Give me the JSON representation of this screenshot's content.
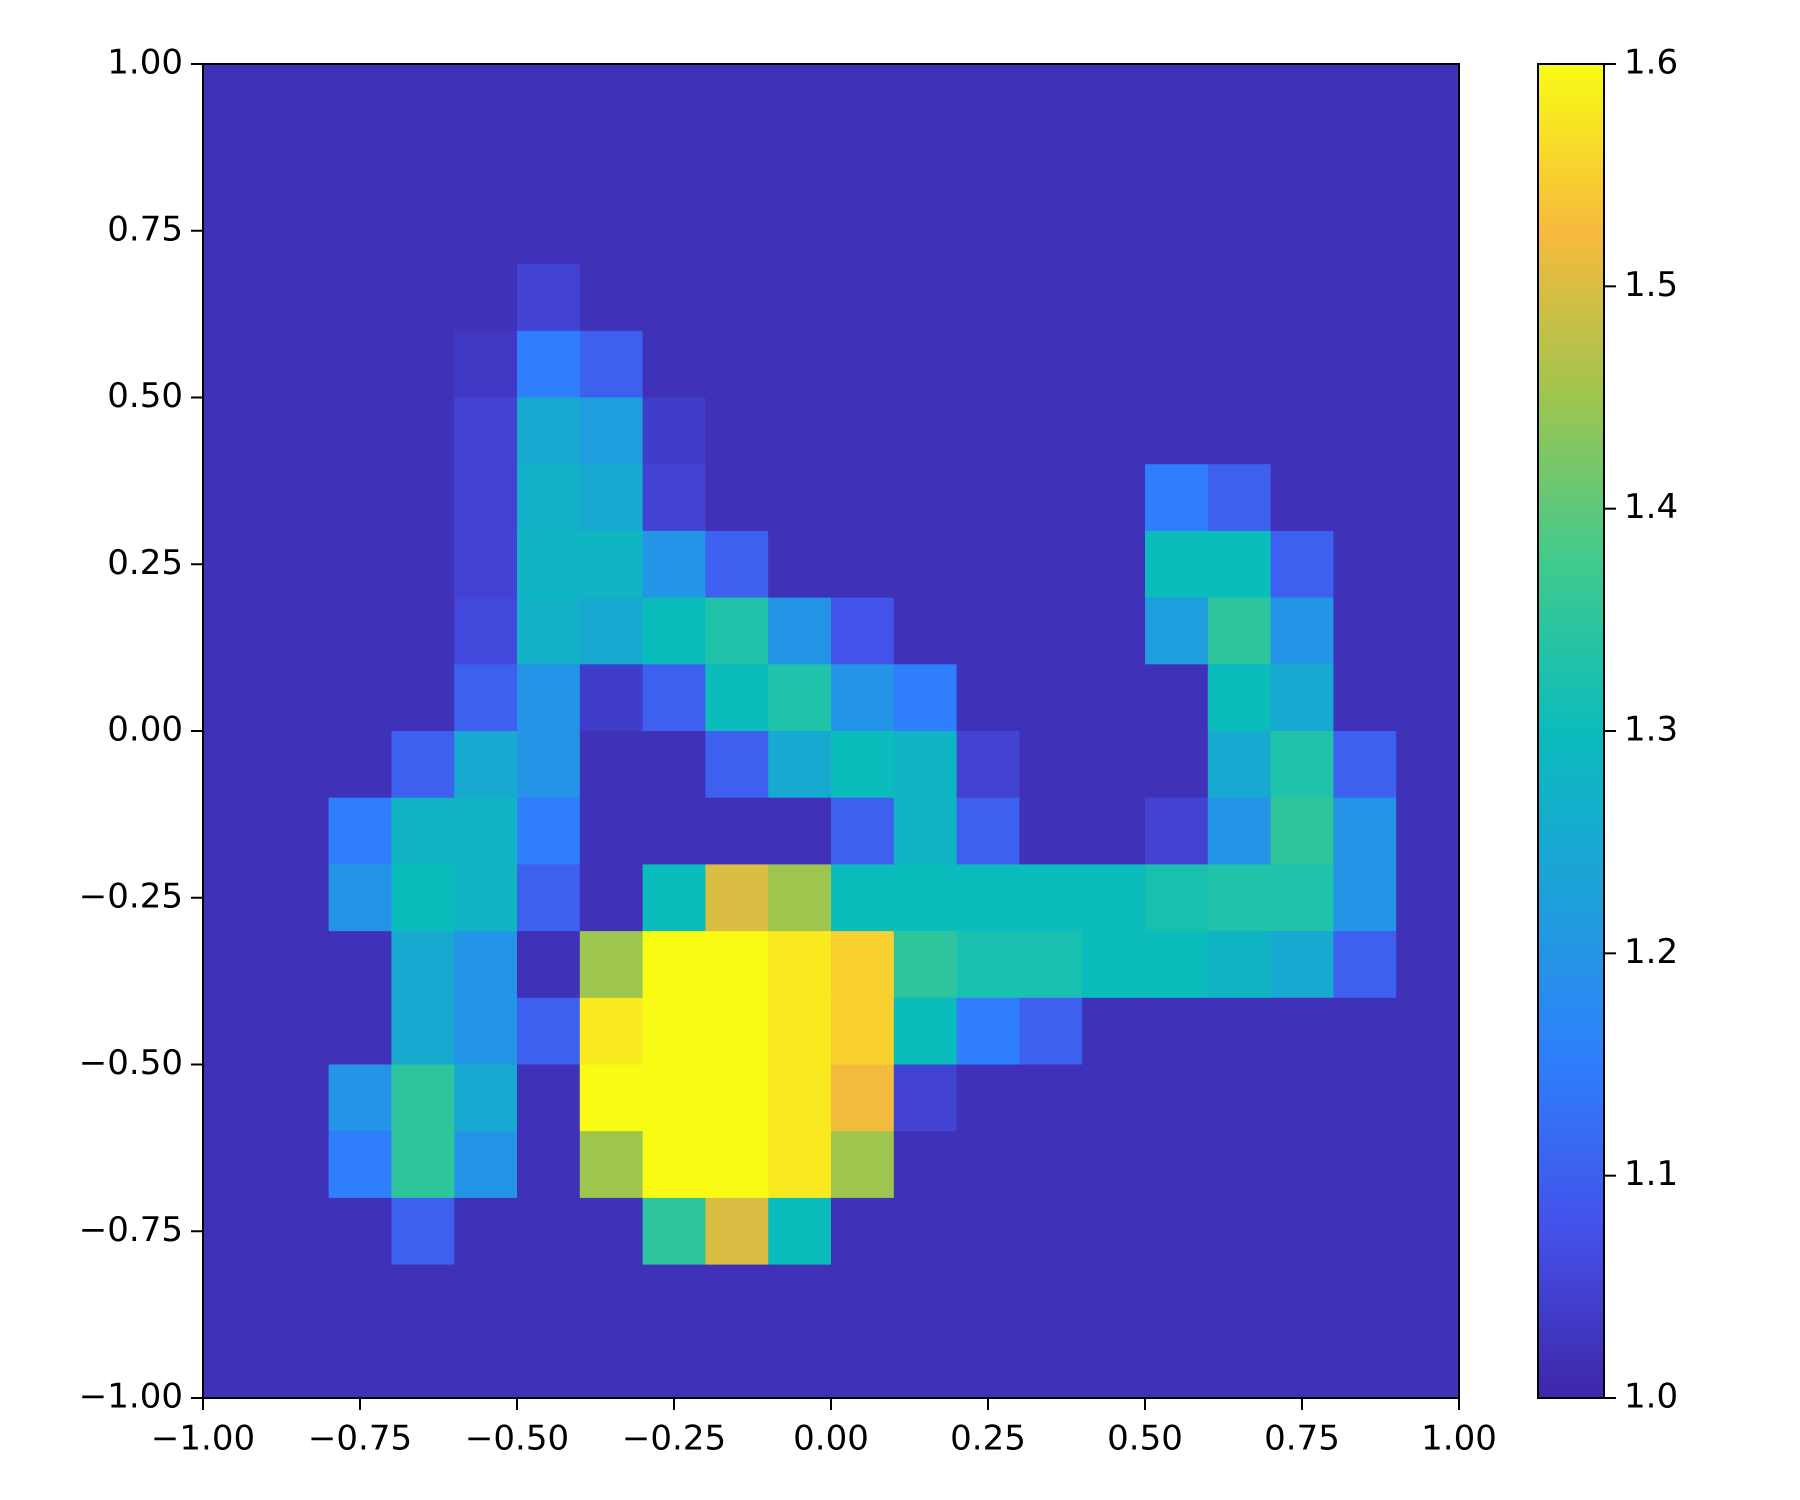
{
  "chart_data": {
    "type": "heatmap",
    "xlim": [
      -1,
      1
    ],
    "ylim": [
      -1,
      1
    ],
    "origin": "upper",
    "xticks": [
      {
        "value": -1,
        "label": "−1.00"
      },
      {
        "value": -0.75,
        "label": "−0.75"
      },
      {
        "value": -0.5,
        "label": "−0.50"
      },
      {
        "value": -0.25,
        "label": "−0.25"
      },
      {
        "value": 0,
        "label": "0.00"
      },
      {
        "value": 0.25,
        "label": "0.25"
      },
      {
        "value": 0.5,
        "label": "0.50"
      },
      {
        "value": 0.75,
        "label": "0.75"
      },
      {
        "value": 1,
        "label": "1.00"
      }
    ],
    "yticks": [
      {
        "value": -1,
        "label": "−1.00"
      },
      {
        "value": -0.75,
        "label": "−0.75"
      },
      {
        "value": -0.5,
        "label": "−0.50"
      },
      {
        "value": -0.25,
        "label": "−0.25"
      },
      {
        "value": 0,
        "label": "0.00"
      },
      {
        "value": 0.25,
        "label": "0.25"
      },
      {
        "value": 0.5,
        "label": "0.50"
      },
      {
        "value": 0.75,
        "label": "0.75"
      },
      {
        "value": 1,
        "label": "1.00"
      }
    ],
    "colorbar": {
      "lim": [
        1.0,
        1.6
      ],
      "ticks": [
        {
          "value": 1,
          "label": "1.0"
        },
        1.1,
        1.2,
        1.3,
        1.4,
        1.5,
        1.6
      ]
    },
    "colormap": [
      "#3e26a8",
      "#4451e9",
      "#2f7efb",
      "#1ea0db",
      "#0bbcbc",
      "#3fca8e",
      "#9ec54e",
      "#f8ba3d",
      "#f9fb15"
    ],
    "z": [
      [
        1.02,
        1.02,
        1.02,
        1.02,
        1.02,
        1.02,
        1.02,
        1.02,
        1.02,
        1.02,
        1.02,
        1.02,
        1.02,
        1.02,
        1.02,
        1.02,
        1.02,
        1.02,
        1.02,
        1.02
      ],
      [
        1.02,
        1.02,
        1.02,
        1.02,
        1.02,
        1.02,
        1.02,
        1.02,
        1.02,
        1.02,
        1.02,
        1.02,
        1.02,
        1.02,
        1.02,
        1.02,
        1.02,
        1.02,
        1.02,
        1.02
      ],
      [
        1.02,
        1.02,
        1.02,
        1.02,
        1.02,
        1.02,
        1.02,
        1.02,
        1.02,
        1.02,
        1.02,
        1.02,
        1.02,
        1.02,
        1.02,
        1.02,
        1.02,
        1.02,
        1.02,
        1.02
      ],
      [
        1.02,
        1.02,
        1.02,
        1.02,
        1.02,
        1.05,
        1.02,
        1.02,
        1.02,
        1.02,
        1.02,
        1.02,
        1.02,
        1.02,
        1.02,
        1.02,
        1.02,
        1.02,
        1.02,
        1.02
      ],
      [
        1.02,
        1.02,
        1.02,
        1.02,
        1.03,
        1.15,
        1.1,
        1.02,
        1.02,
        1.02,
        1.02,
        1.02,
        1.02,
        1.02,
        1.02,
        1.02,
        1.02,
        1.02,
        1.02,
        1.02
      ],
      [
        1.02,
        1.02,
        1.02,
        1.02,
        1.05,
        1.25,
        1.22,
        1.04,
        1.02,
        1.02,
        1.02,
        1.02,
        1.02,
        1.02,
        1.02,
        1.02,
        1.02,
        1.02,
        1.02,
        1.02
      ],
      [
        1.02,
        1.02,
        1.02,
        1.02,
        1.05,
        1.27,
        1.25,
        1.05,
        1.02,
        1.02,
        1.02,
        1.02,
        1.02,
        1.02,
        1.02,
        1.15,
        1.1,
        1.02,
        1.02,
        1.02
      ],
      [
        1.02,
        1.02,
        1.02,
        1.02,
        1.05,
        1.28,
        1.28,
        1.2,
        1.1,
        1.02,
        1.02,
        1.02,
        1.02,
        1.02,
        1.02,
        1.3,
        1.3,
        1.1,
        1.02,
        1.02
      ],
      [
        1.02,
        1.02,
        1.02,
        1.02,
        1.06,
        1.27,
        1.25,
        1.3,
        1.33,
        1.2,
        1.08,
        1.02,
        1.02,
        1.02,
        1.02,
        1.22,
        1.35,
        1.2,
        1.02,
        1.02
      ],
      [
        1.02,
        1.02,
        1.02,
        1.02,
        1.1,
        1.2,
        1.04,
        1.1,
        1.3,
        1.33,
        1.2,
        1.15,
        1.02,
        1.02,
        1.02,
        1.02,
        1.3,
        1.25,
        1.02,
        1.02
      ],
      [
        1.02,
        1.02,
        1.02,
        1.1,
        1.25,
        1.2,
        1.02,
        1.02,
        1.1,
        1.25,
        1.3,
        1.28,
        1.05,
        1.02,
        1.02,
        1.02,
        1.25,
        1.33,
        1.1,
        1.02
      ],
      [
        1.02,
        1.02,
        1.15,
        1.28,
        1.28,
        1.15,
        1.02,
        1.02,
        1.02,
        1.02,
        1.1,
        1.28,
        1.1,
        1.02,
        1.02,
        1.05,
        1.2,
        1.35,
        1.2,
        1.02
      ],
      [
        1.02,
        1.02,
        1.2,
        1.3,
        1.28,
        1.1,
        1.02,
        1.3,
        1.5,
        1.45,
        1.3,
        1.3,
        1.3,
        1.3,
        1.3,
        1.32,
        1.33,
        1.33,
        1.2,
        1.02
      ],
      [
        1.02,
        1.02,
        1.02,
        1.25,
        1.2,
        1.02,
        1.45,
        1.6,
        1.6,
        1.58,
        1.55,
        1.35,
        1.32,
        1.32,
        1.3,
        1.3,
        1.28,
        1.25,
        1.1,
        1.02
      ],
      [
        1.02,
        1.02,
        1.02,
        1.25,
        1.2,
        1.1,
        1.58,
        1.6,
        1.6,
        1.58,
        1.55,
        1.3,
        1.15,
        1.1,
        1.02,
        1.02,
        1.02,
        1.02,
        1.02,
        1.02
      ],
      [
        1.02,
        1.02,
        1.2,
        1.35,
        1.25,
        1.02,
        1.6,
        1.6,
        1.6,
        1.58,
        1.52,
        1.05,
        1.02,
        1.02,
        1.02,
        1.02,
        1.02,
        1.02,
        1.02,
        1.02
      ],
      [
        1.02,
        1.02,
        1.15,
        1.35,
        1.2,
        1.02,
        1.45,
        1.6,
        1.6,
        1.58,
        1.45,
        1.02,
        1.02,
        1.02,
        1.02,
        1.02,
        1.02,
        1.02,
        1.02,
        1.02
      ],
      [
        1.02,
        1.02,
        1.02,
        1.1,
        1.02,
        1.02,
        1.02,
        1.35,
        1.5,
        1.3,
        1.02,
        1.02,
        1.02,
        1.02,
        1.02,
        1.02,
        1.02,
        1.02,
        1.02,
        1.02
      ],
      [
        1.02,
        1.02,
        1.02,
        1.02,
        1.02,
        1.02,
        1.02,
        1.02,
        1.02,
        1.02,
        1.02,
        1.02,
        1.02,
        1.02,
        1.02,
        1.02,
        1.02,
        1.02,
        1.02,
        1.02
      ],
      [
        1.02,
        1.02,
        1.02,
        1.02,
        1.02,
        1.02,
        1.02,
        1.02,
        1.02,
        1.02,
        1.02,
        1.02,
        1.02,
        1.02,
        1.02,
        1.02,
        1.02,
        1.02,
        1.02,
        1.02
      ]
    ]
  }
}
